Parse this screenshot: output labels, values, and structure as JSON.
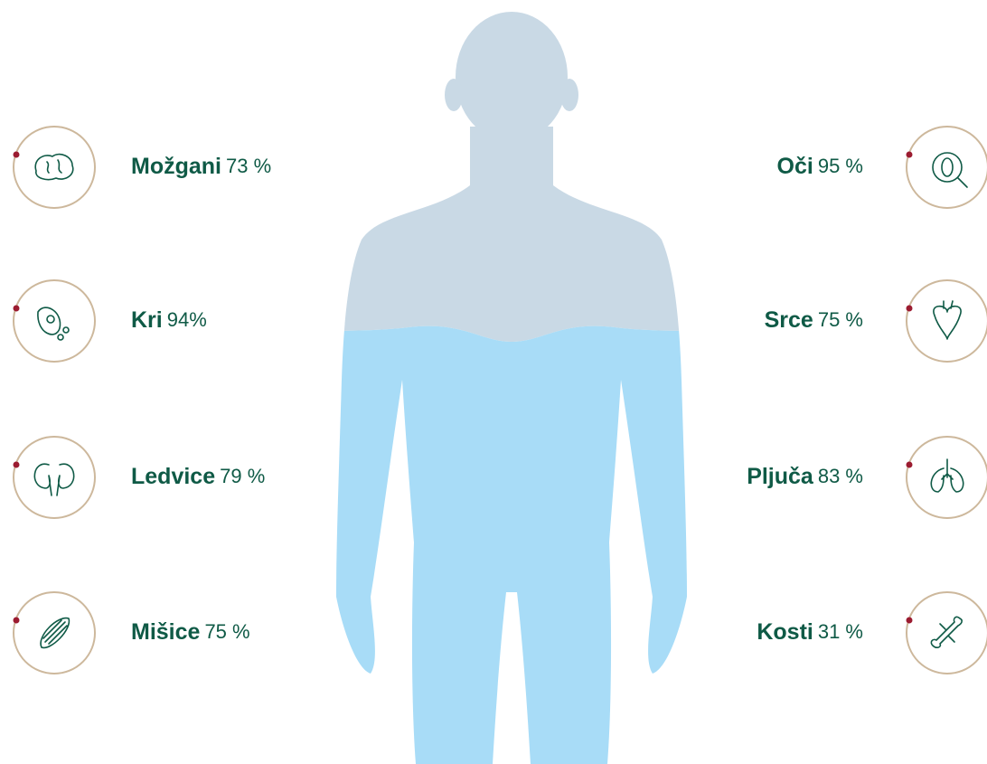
{
  "left": [
    {
      "name": "Možgani",
      "value": "73 %"
    },
    {
      "name": "Kri",
      "value": "94%"
    },
    {
      "name": "Ledvice",
      "value": "79 %"
    },
    {
      "name": "Mišice",
      "value": "75 %"
    }
  ],
  "right": [
    {
      "name": "Oči",
      "value": "95 %"
    },
    {
      "name": "Srce",
      "value": "75 %"
    },
    {
      "name": "Pljuča",
      "value": "83 %"
    },
    {
      "name": "Kosti",
      "value": "31 %"
    }
  ]
}
